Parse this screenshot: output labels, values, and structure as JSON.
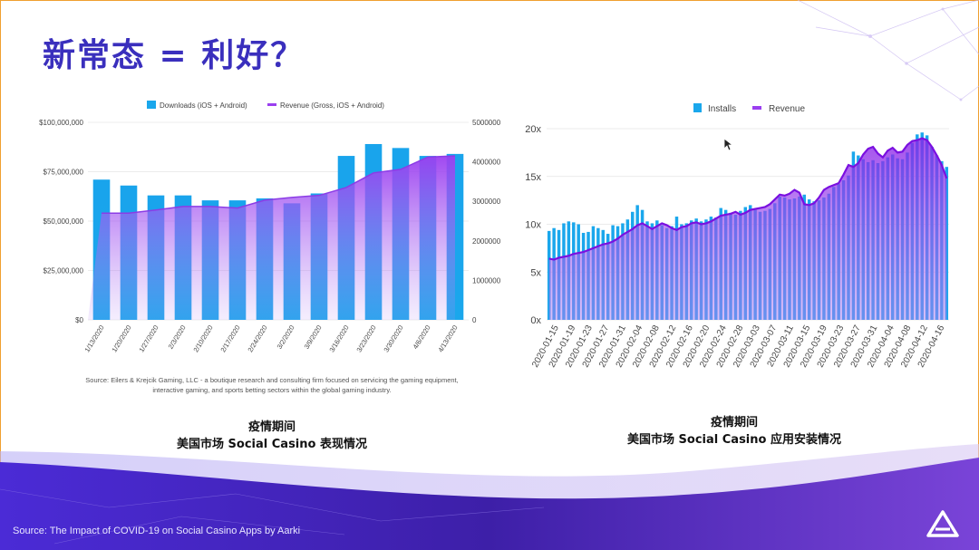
{
  "slide": {
    "title": "新常态 = 利好？",
    "footer_source": "Source: The Impact of COVID-19 on Social Casino Apps by Aarki",
    "left_caption": [
      "疫情期间",
      "美国市场 Social Casino 表现情况"
    ],
    "right_caption": [
      "疫情期间",
      "美国市场 Social Casino 应用安装情况"
    ],
    "source_note": [
      "Source: Eilers & Krejcik Gaming, LLC - a boutique research and consulting firm focused on servicing the gaming equipment,",
      "interactive gaming, and sports betting sectors within the global gaming industry."
    ],
    "logo_icon": "aarki-triangle-icon",
    "cursor_icon": "mouse-pointer-icon",
    "colors": {
      "title": "#3a2fbd",
      "bar": "#1aa7ec",
      "purple": "#9b3ff0",
      "wave": "#5a2fd0"
    }
  },
  "chart_data": [
    {
      "type": "bar+area",
      "legend": [
        "Downloads (iOS + Android)",
        "Revenue (Gross, iOS + Android)"
      ],
      "categories": [
        "1/13/2020",
        "1/20/2020",
        "1/27/2020",
        "2/3/2020",
        "2/10/2020",
        "2/17/2020",
        "2/24/2020",
        "3/2/2020",
        "3/9/2020",
        "3/16/2020",
        "3/23/2020",
        "3/30/2020",
        "4/6/2020",
        "4/13/2020"
      ],
      "series": [
        {
          "name": "Downloads (iOS + Android)",
          "axis": "left",
          "values": [
            71000000,
            68000000,
            63000000,
            63000000,
            60500000,
            60500000,
            61500000,
            59000000,
            64000000,
            83000000,
            89000000,
            87000000,
            83000000,
            84000000
          ]
        },
        {
          "name": "Revenue (Gross, iOS + Android)",
          "axis": "right",
          "values": [
            2700000,
            2700000,
            2780000,
            2870000,
            2870000,
            2830000,
            3030000,
            3100000,
            3150000,
            3350000,
            3720000,
            3810000,
            4120000,
            4150000
          ]
        }
      ],
      "y_left": {
        "ticks": [
          "$0",
          "$25,000,000",
          "$50,000,000",
          "$75,000,000",
          "$100,000,000"
        ],
        "lim": [
          0,
          100000000
        ]
      },
      "y_right": {
        "ticks": [
          "0",
          "1000000",
          "2000000",
          "3000000",
          "4000000",
          "5000000"
        ],
        "lim": [
          0,
          5000000
        ]
      }
    },
    {
      "type": "bar+area",
      "legend": [
        "Installs",
        "Revenue"
      ],
      "x_tick_labels": [
        "2020-01-15",
        "2020-01-19",
        "2020-01-23",
        "2020-01-27",
        "2020-01-31",
        "2020-02-04",
        "2020-02-08",
        "2020-02-12",
        "2020-02-16",
        "2020-02-20",
        "2020-02-24",
        "2020-02-28",
        "2020-03-03",
        "2020-03-07",
        "2020-03-11",
        "2020-03-15",
        "2020-03-19",
        "2020-03-23",
        "2020-03-27",
        "2020-03-31",
        "2020-04-04",
        "2020-04-08",
        "2020-04-12",
        "2020-04-16"
      ],
      "y_ticks": [
        "0x",
        "5x",
        "10x",
        "15x",
        "20x"
      ],
      "ylim": [
        0,
        20
      ],
      "series": [
        {
          "name": "Installs",
          "values": [
            9.3,
            9.6,
            9.4,
            10.1,
            10.3,
            10.2,
            10.0,
            9.1,
            9.2,
            9.8,
            9.6,
            9.4,
            9.0,
            9.9,
            9.8,
            10.1,
            10.5,
            11.3,
            12.0,
            11.5,
            10.3,
            10.1,
            10.4,
            9.9,
            9.6,
            9.8,
            10.8,
            10.0,
            10.1,
            10.4,
            10.6,
            10.3,
            10.5,
            10.8,
            10.7,
            11.7,
            11.5,
            11.2,
            11.0,
            11.4,
            11.8,
            12.0,
            11.5,
            11.3,
            11.4,
            11.6,
            12.2,
            12.9,
            12.8,
            12.6,
            12.7,
            12.9,
            13.1,
            12.6,
            12.4,
            12.5,
            12.8,
            13.2,
            13.9,
            14.2,
            14.6,
            15.1,
            17.6,
            17.2,
            16.8,
            16.5,
            16.7,
            16.4,
            16.6,
            17.0,
            17.3,
            16.9,
            16.8,
            17.5,
            18.5,
            19.4,
            19.6,
            19.3,
            18.1,
            17.2,
            16.6,
            16.0
          ]
        },
        {
          "name": "Revenue",
          "values": [
            6.4,
            6.3,
            6.5,
            6.6,
            6.7,
            6.9,
            7.0,
            7.1,
            7.3,
            7.5,
            7.7,
            7.9,
            8.0,
            8.2,
            8.5,
            8.9,
            9.2,
            9.5,
            9.9,
            10.1,
            9.8,
            9.5,
            9.8,
            10.1,
            9.9,
            9.6,
            9.4,
            9.7,
            9.8,
            10.1,
            10.2,
            10.0,
            10.1,
            10.3,
            10.6,
            10.9,
            11.0,
            11.1,
            11.3,
            11.0,
            11.2,
            11.5,
            11.6,
            11.7,
            11.8,
            12.1,
            12.6,
            13.1,
            13.0,
            13.2,
            13.6,
            13.3,
            12.1,
            12.0,
            12.2,
            12.8,
            13.6,
            13.9,
            14.1,
            14.3,
            15.2,
            16.2,
            16.0,
            16.4,
            17.3,
            17.9,
            18.1,
            17.4,
            17.0,
            17.7,
            18.0,
            17.5,
            17.6,
            18.3,
            18.7,
            18.8,
            19.0,
            18.8,
            18.1,
            17.2,
            16.2,
            14.8
          ]
        }
      ]
    }
  ]
}
